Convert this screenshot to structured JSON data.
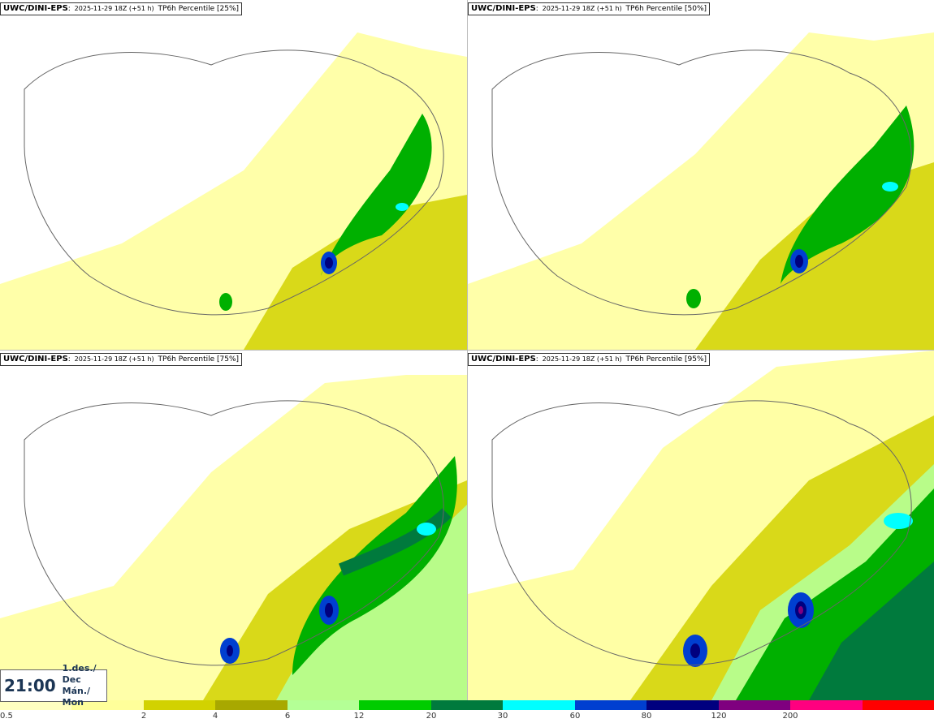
{
  "panels": [
    {
      "model": "UWC/DINI-EPS",
      "run": "2025-11-29 18Z (+51 h)",
      "field": "TP6h Percentile [25%]",
      "percentile": 25
    },
    {
      "model": "UWC/DINI-EPS",
      "run": "2025-11-29 18Z (+51 h)",
      "field": "TP6h Percentile [50%]",
      "percentile": 50
    },
    {
      "model": "UWC/DINI-EPS",
      "run": "2025-11-29 18Z (+51 h)",
      "field": "TP6h Percentile [75%]",
      "percentile": 75
    },
    {
      "model": "UWC/DINI-EPS",
      "run": "2025-11-29 18Z (+51 h)",
      "field": "TP6h Percentile [95%]",
      "percentile": 95
    }
  ],
  "valid_time": {
    "clock": "21:00",
    "date": "1.des./ Dec",
    "weekday": "Mán./ Mon"
  },
  "legend": {
    "labels": [
      "0.5",
      "2",
      "4",
      "6",
      "12",
      "20",
      "30",
      "60",
      "80",
      "120",
      "200"
    ],
    "colors": [
      "#ffffc0",
      "#ffff9a",
      "#d2d200",
      "#a8a800",
      "#b4ff96",
      "#00cc00",
      "#007a3d",
      "#00ffff",
      "#003fd0",
      "#00007f",
      "#7f007f",
      "#ff007f",
      "#ff0000"
    ]
  }
}
